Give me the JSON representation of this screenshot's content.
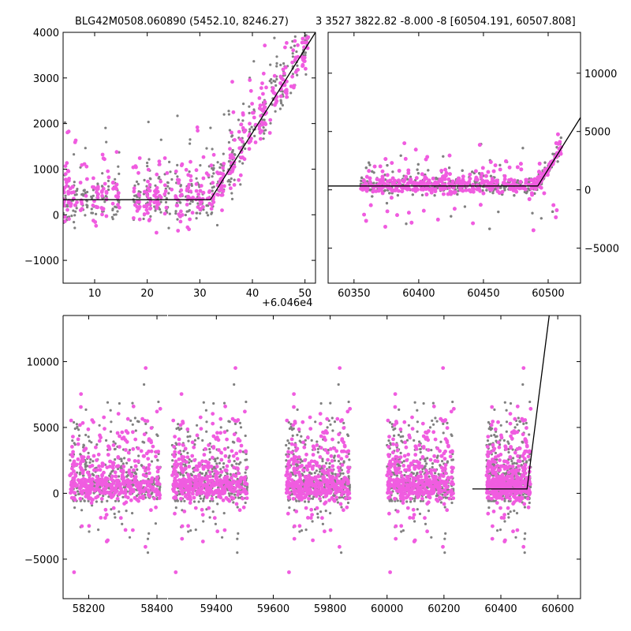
{
  "titles": {
    "left": "BLG42M0508.060890 (5452.10, 8246.27)",
    "right": "3 3527 3822.82 -8.000 -8 [60504.191, 60507.808]"
  },
  "offset_label": "+6.046e4",
  "colors": {
    "gray": "#808080",
    "magenta": "#f05ce0",
    "model": "#000000"
  },
  "chart_data": [
    {
      "type": "scatter",
      "panel": "top-left zoom",
      "x_ticks": [
        "10",
        "20",
        "30",
        "40",
        "50"
      ],
      "y_ticks": [
        "−1000",
        "0",
        "1000",
        "2000",
        "3000",
        "4000"
      ],
      "xlim": [
        4,
        52
      ],
      "ylim": [
        -1500,
        4000
      ],
      "x_offset": 60460,
      "model_line": {
        "x": [
          4,
          32,
          52
        ],
        "y": [
          330,
          330,
          4000
        ]
      },
      "series": [
        {
          "color": "gray",
          "style": "small points"
        },
        {
          "color": "magenta",
          "style": "large points"
        }
      ]
    },
    {
      "type": "scatter",
      "panel": "top-right",
      "x_ticks": [
        "60350",
        "60400",
        "60450",
        "60500"
      ],
      "y_ticks": [
        "−5000",
        "0",
        "5000",
        "10000"
      ],
      "xlim": [
        60330,
        60525
      ],
      "ylim": [
        -8000,
        13500
      ],
      "y_axis_side": "right",
      "model_line": {
        "x": [
          60330,
          60492,
          60525
        ],
        "y": [
          330,
          330,
          6200
        ]
      },
      "series": [
        {
          "color": "gray",
          "style": "small points"
        },
        {
          "color": "magenta",
          "style": "large points"
        }
      ]
    },
    {
      "type": "scatter",
      "panel": "bottom full light curve",
      "x_ticks": [
        "58200",
        "58400",
        "59400",
        "59600",
        "59800",
        "60000",
        "60200",
        "60400",
        "60600"
      ],
      "y_ticks": [
        "−5000",
        "0",
        "5000",
        "10000"
      ],
      "xlim_segments": [
        [
          58125,
          58430
        ],
        [
          59230,
          60680
        ]
      ],
      "ylim": [
        -8000,
        13500
      ],
      "seasons": [
        [
          58145,
          58410
        ],
        [
          59245,
          59510
        ],
        [
          59645,
          59870
        ],
        [
          60000,
          60235
        ],
        [
          60350,
          60505
        ]
      ],
      "model_line": {
        "x": [
          60300,
          60492,
          60570
        ],
        "y": [
          330,
          330,
          13500
        ]
      },
      "series": [
        {
          "color": "gray",
          "style": "small points"
        },
        {
          "color": "magenta",
          "style": "large points"
        }
      ]
    }
  ]
}
